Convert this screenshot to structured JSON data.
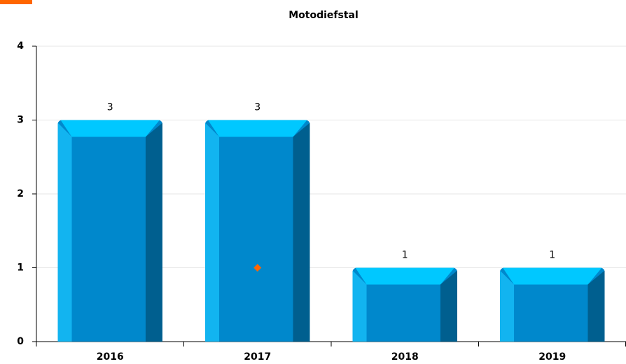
{
  "chart_data": {
    "type": "bar",
    "title": "Motodiefstal",
    "categories": [
      "2016",
      "2017",
      "2018",
      "2019"
    ],
    "values": [
      3,
      3,
      1,
      1
    ],
    "color": "#0088cc",
    "points": {
      "color": "#ff6600",
      "values": [
        null,
        1,
        null,
        null
      ]
    },
    "ylim": [
      0,
      4
    ],
    "yticks": [
      0,
      1,
      2,
      3,
      4
    ],
    "grid": true
  }
}
